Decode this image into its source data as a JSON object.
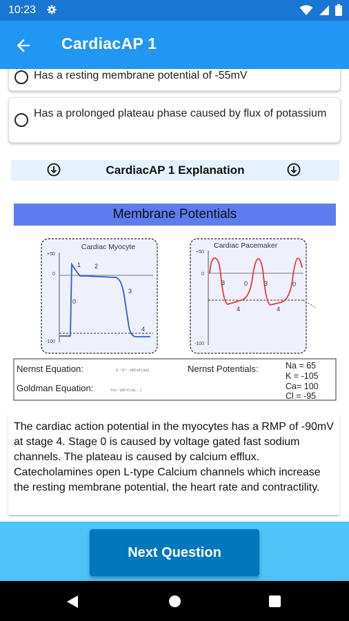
{
  "status_bar": {
    "time": "10:23",
    "icons": [
      "gear-icon",
      "wifi-icon",
      "signal-icon",
      "battery-icon"
    ]
  },
  "app_bar": {
    "title": "CardiacAP 1",
    "back_icon": "arrow-back-icon"
  },
  "options": [
    {
      "text": "Has a resting membrane potential of -55mV"
    },
    {
      "text": "Has a prolonged plateau phase caused by flux of potassium"
    }
  ],
  "explanation_header": {
    "title": "CardiacAP 1 Explanation",
    "icon": "arrow-down-circle-icon"
  },
  "figure": {
    "title": "Membrane Potentials",
    "myocyte_panel": {
      "title": "Cardiac Myocyte",
      "y_ticks": [
        "+50",
        "0",
        "-100"
      ],
      "phase_labels": [
        "1",
        "2",
        "0",
        "3",
        "4"
      ]
    },
    "pacemaker_panel": {
      "title": "Cardiac Pacemaker",
      "y_ticks": [
        "+50",
        "0",
        "-100"
      ],
      "phase_labels": [
        "3",
        "0",
        "3",
        "0",
        "4",
        "4"
      ]
    },
    "equations": {
      "nernst_label": "Nernst Equation:",
      "goldman_label": "Goldman Equation:",
      "nernst_potentials_label": "Nernst Potentials:",
      "nernst_formula": "E = E° − (RT/zF) lnQ",
      "goldman_formula": "Vm = (RT/F) ln( ... )",
      "potentials": [
        "Na  = 65",
        "K = -105",
        "Ca= 100",
        "Cl = -95"
      ]
    },
    "colors": {
      "header": "#5d7cf0",
      "myocyte_trace": "#2b5bd6",
      "pacemaker_trace": "#e53935",
      "panel_bg": "#eef0fb"
    }
  },
  "explanation_text": "The cardiac action potential in the myocytes has a RMP of -90mV at stage 4. Stage 0 is caused by voltage gated fast sodium channels. The plateau is caused by calcium efflux. Catecholamines open L-type Calcium channels which increase the resting membrane potential, the heart rate and contractility.",
  "next_button": {
    "label": "Next Question"
  },
  "nav_bar": {
    "icons": [
      "back-triangle-icon",
      "home-circle-icon",
      "recents-square-icon"
    ]
  },
  "colors": {
    "status_bar": "#1976d2",
    "app_bar": "#2196f3",
    "bottom_area": "#4fc3f7",
    "next_button": "#0277bd"
  }
}
